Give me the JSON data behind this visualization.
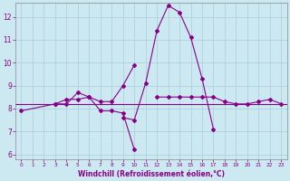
{
  "xlabel": "Windchill (Refroidissement éolien,°C)",
  "background_color": "#cce8f0",
  "grid_color": "#aaccdd",
  "line_color": "#880088",
  "hours": [
    0,
    1,
    2,
    3,
    4,
    5,
    6,
    7,
    8,
    9,
    10,
    11,
    12,
    13,
    14,
    15,
    16,
    17,
    18,
    19,
    20,
    21,
    22,
    23
  ],
  "line1": [
    7.9,
    null,
    null,
    8.2,
    8.2,
    8.7,
    8.5,
    7.9,
    7.9,
    7.8,
    6.2,
    null,
    null,
    null,
    null,
    null,
    null,
    null,
    null,
    null,
    null,
    null,
    null,
    null
  ],
  "line2": [
    null,
    null,
    null,
    null,
    null,
    null,
    null,
    null,
    null,
    7.6,
    7.5,
    9.1,
    11.4,
    12.5,
    12.2,
    11.1,
    9.3,
    7.1,
    null,
    null,
    null,
    null,
    null,
    null
  ],
  "line3": [
    null,
    null,
    null,
    8.2,
    8.4,
    8.4,
    8.5,
    8.3,
    8.3,
    9.0,
    9.9,
    null,
    null,
    null,
    null,
    null,
    null,
    null,
    null,
    null,
    null,
    null,
    null,
    null
  ],
  "line4": [
    null,
    null,
    null,
    null,
    null,
    null,
    null,
    null,
    null,
    null,
    null,
    null,
    8.5,
    8.5,
    8.5,
    8.5,
    8.5,
    8.5,
    8.3,
    8.2,
    8.2,
    8.3,
    8.4,
    8.2
  ],
  "hline_y": 8.2,
  "ylim": [
    5.8,
    12.6
  ],
  "xlim": [
    -0.5,
    23.5
  ],
  "yticks": [
    6,
    7,
    8,
    9,
    10,
    11,
    12
  ],
  "xticks": [
    0,
    1,
    2,
    3,
    4,
    5,
    6,
    7,
    8,
    9,
    10,
    11,
    12,
    13,
    14,
    15,
    16,
    17,
    18,
    19,
    20,
    21,
    22,
    23
  ],
  "xlabel_fontsize": 5.5,
  "ytick_fontsize": 5.5,
  "xtick_fontsize": 4.2,
  "marker_size": 2.0,
  "linewidth": 0.8
}
